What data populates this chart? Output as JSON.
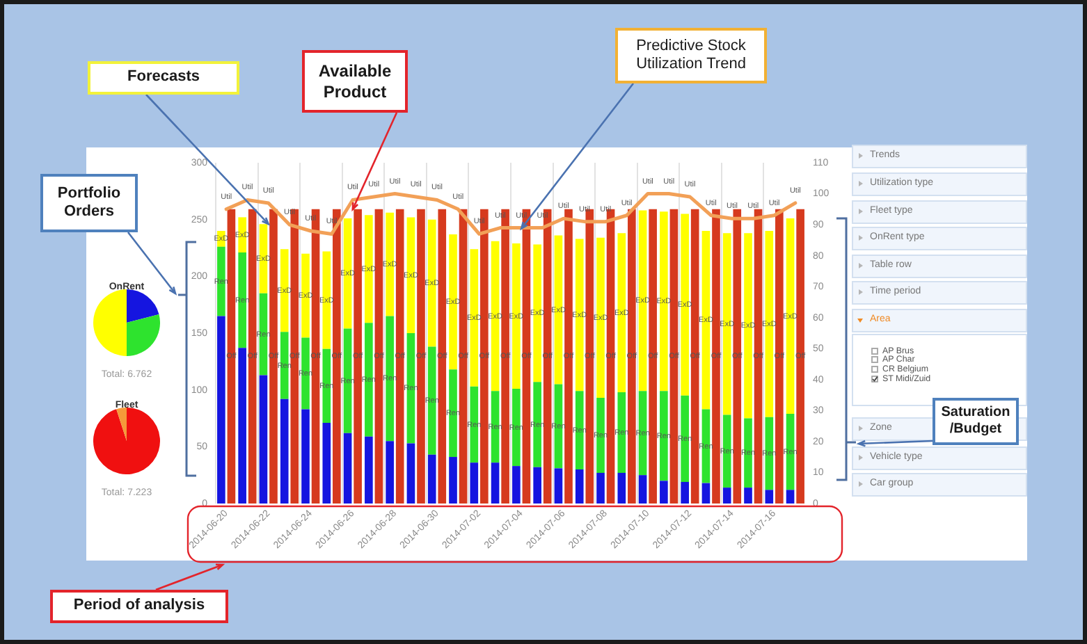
{
  "chart_data": [
    {
      "type": "pie",
      "title": "OnRent",
      "categories": [
        null,
        null,
        null
      ],
      "values": [
        21,
        29,
        50
      ],
      "colors": [
        "#1515e0",
        "#2ee32e",
        "#ffff00"
      ],
      "annotations": [
        "Total: 6.762"
      ]
    },
    {
      "type": "pie",
      "title": "Fleet",
      "categories": [
        null,
        null
      ],
      "values": [
        95,
        5
      ],
      "colors": [
        "#f01010",
        "#f59a3a"
      ],
      "annotations": [
        "Total: 7.223"
      ]
    },
    {
      "type": "bar",
      "stacked": true,
      "grid": "x",
      "categories": [
        "2014-06-20",
        null,
        "2014-06-22",
        null,
        "2014-06-24",
        null,
        "2014-06-26",
        null,
        "2014-06-28",
        null,
        "2014-06-30",
        null,
        "2014-07-02",
        null,
        "2014-07-04",
        null,
        "2014-07-06",
        null,
        "2014-07-08",
        null,
        "2014-07-10",
        null,
        "2014-07-12",
        null,
        "2014-07-14",
        null,
        "2014-07-16",
        null
      ],
      "series": [
        {
          "color": "#1515e0",
          "values": [
            165,
            137,
            113,
            92,
            83,
            71,
            62,
            59,
            55,
            53,
            43,
            41,
            36,
            36,
            33,
            32,
            31,
            30,
            27,
            27,
            25,
            20,
            19,
            18,
            14,
            14,
            12,
            12
          ]
        },
        {
          "name": "Ren",
          "color": "#2ee32e",
          "values": [
            61,
            84,
            72,
            59,
            63,
            65,
            92,
            100,
            110,
            97,
            95,
            77,
            67,
            63,
            68,
            75,
            74,
            69,
            66,
            71,
            74,
            79,
            76,
            65,
            64,
            61,
            64,
            67
          ]
        },
        {
          "name": "ExD",
          "color": "#ffff00",
          "values": [
            14,
            31,
            61,
            73,
            74,
            86,
            97,
            95,
            91,
            102,
            112,
            119,
            121,
            132,
            128,
            121,
            131,
            134,
            141,
            140,
            159,
            158,
            160,
            157,
            160,
            163,
            164,
            172
          ]
        },
        {
          "name": "Off",
          "color": "#d63a1e",
          "axis": "y2",
          "values": [
            95,
            95,
            95,
            95,
            95,
            95,
            95,
            95,
            95,
            95,
            95,
            95,
            95,
            95,
            95,
            95,
            95,
            95,
            95,
            95,
            95,
            95,
            95,
            95,
            95,
            95,
            95,
            95
          ]
        },
        {
          "name": "Util",
          "type": "line",
          "axis": "y2",
          "color": "#f2a057",
          "values": [
            95,
            98,
            97,
            90,
            88,
            87,
            98,
            99,
            100,
            99,
            98,
            95,
            87,
            89,
            89,
            89,
            92,
            91,
            91,
            93,
            100,
            100,
            99,
            93,
            92,
            92,
            93,
            97
          ]
        }
      ],
      "ylim": [
        0,
        300
      ],
      "yticks": [
        0,
        50,
        100,
        150,
        200,
        250,
        300
      ],
      "y2lim": [
        0,
        110
      ],
      "y2ticks": [
        0,
        10,
        20,
        30,
        40,
        50,
        60,
        70,
        80,
        90,
        100,
        110
      ],
      "annotations": [
        {
          "text": "Forecasts",
          "x": "2014-06-22",
          "y": 246
        },
        {
          "text": "Available Product",
          "x": "2014-06-26",
          "y": 259
        },
        {
          "text": "Predictive Stock Utilization Trend",
          "x": "2014-07-04",
          "y": 242
        },
        "Portfolio Orders",
        "Saturation /Budget",
        "Period of analysis"
      ]
    },
    {
      "type": "other",
      "annotations": [
        "Trends",
        "Utilization type",
        "Fleet type",
        "OnRent type",
        "Table row",
        "Time period",
        "Area",
        "AP Brus",
        "AP Char",
        "CR Belgium",
        "ST Midi/Zuid",
        "Zone",
        "Vehicle type",
        "Car group"
      ]
    }
  ]
}
